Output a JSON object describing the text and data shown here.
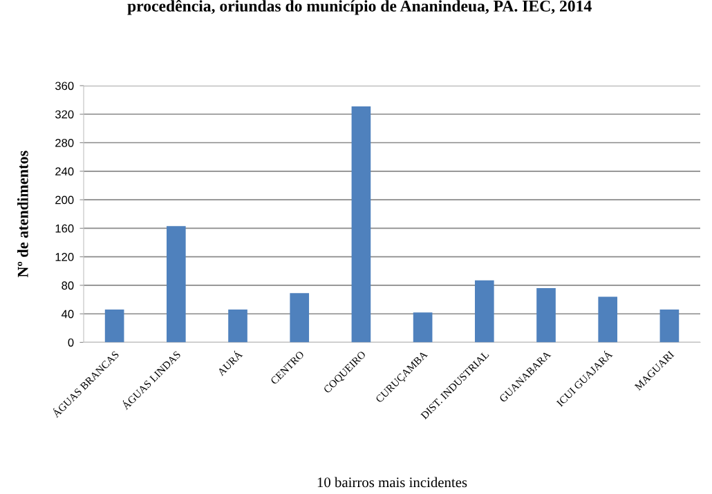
{
  "chart_data": {
    "type": "bar",
    "title": "procedência, oriundas do município de Ananindeua, PA. IEC, 2014",
    "xlabel": "10 bairros mais incidentes",
    "ylabel": "Nº de atendimentos",
    "categories": [
      "ÁGUAS BRANCAS",
      "ÁGUAS LINDAS",
      "AURÁ",
      "CENTRO",
      "COQUEIRO",
      "CURUÇAMBA",
      "DIST. INDUSTRIAL",
      "GUANABARA",
      "ICUI GUAJARÁ",
      "MAGUARI"
    ],
    "values": [
      46,
      163,
      46,
      69,
      331,
      42,
      87,
      76,
      64,
      46
    ],
    "color": "#4f81bd",
    "ylim": [
      0,
      360
    ],
    "yticks": [
      0,
      40,
      80,
      120,
      160,
      200,
      240,
      280,
      320,
      360
    ],
    "grid": "y",
    "legend": false
  }
}
